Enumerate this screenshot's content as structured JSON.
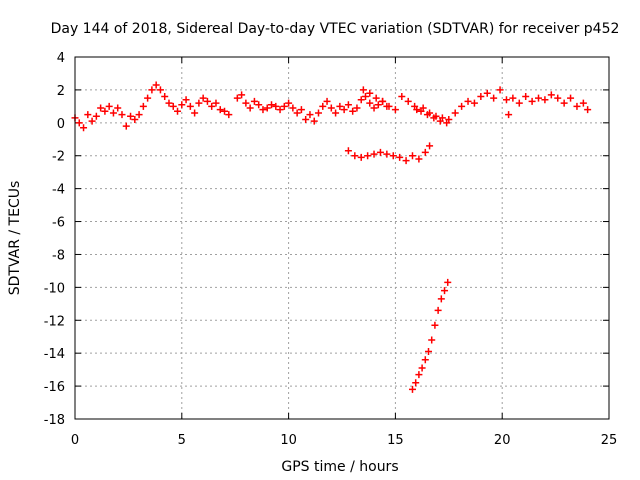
{
  "chart_data": {
    "type": "scatter",
    "title": "Day 144 of 2018, Sidereal Day-to-day VTEC variation (SDTVAR) for receiver p452",
    "xlabel": "GPS time / hours",
    "ylabel": "SDTVAR / TECUs",
    "xlim": [
      0,
      25
    ],
    "ylim": [
      -18,
      4
    ],
    "xticks": [
      0,
      5,
      10,
      15,
      20,
      25
    ],
    "yticks": [
      -18,
      -16,
      -14,
      -12,
      -10,
      -8,
      -6,
      -4,
      -2,
      0,
      2,
      4
    ],
    "grid": true,
    "marker": "+",
    "color": "#ff0000",
    "series": [
      {
        "x": [
          0.0,
          0.2,
          0.4,
          0.6,
          0.8,
          1.0,
          1.2,
          1.4,
          1.6,
          1.8,
          2.0,
          2.2,
          2.4,
          2.6,
          2.8,
          3.0,
          3.2,
          3.4,
          3.6,
          3.8,
          4.0,
          4.2,
          4.4,
          4.6,
          4.8,
          5.0,
          5.2,
          5.4,
          5.6,
          5.8,
          6.0,
          6.2,
          6.4,
          6.6,
          6.8,
          7.0,
          7.2
        ],
        "y": [
          0.3,
          0.0,
          -0.3,
          0.5,
          0.1,
          0.4,
          0.9,
          0.7,
          1.0,
          0.6,
          0.9,
          0.5,
          -0.2,
          0.4,
          0.2,
          0.5,
          1.0,
          1.5,
          2.0,
          2.3,
          2.0,
          1.6,
          1.2,
          1.0,
          0.7,
          1.1,
          1.4,
          1.0,
          0.6,
          1.2,
          1.5,
          1.3,
          1.0,
          1.2,
          0.8,
          0.7,
          0.5
        ]
      },
      {
        "x": [
          7.6,
          7.8,
          8.0,
          8.2,
          8.4,
          8.6,
          8.8,
          9.0,
          9.2,
          9.4,
          9.6,
          9.8,
          10.0,
          10.2,
          10.4,
          10.6,
          10.8,
          11.0,
          11.2,
          11.4,
          11.6,
          11.8,
          12.0,
          12.2,
          12.4,
          12.6,
          12.8,
          13.0,
          13.2,
          13.4,
          13.6,
          13.8,
          14.0,
          14.2,
          14.4,
          14.6
        ],
        "y": [
          1.5,
          1.7,
          1.2,
          0.9,
          1.3,
          1.1,
          0.8,
          0.9,
          1.1,
          1.0,
          0.8,
          1.0,
          1.2,
          0.9,
          0.6,
          0.8,
          0.2,
          0.5,
          0.1,
          0.6,
          1.0,
          1.3,
          0.9,
          0.6,
          1.0,
          0.8,
          1.1,
          0.7,
          0.9,
          1.4,
          1.6,
          1.2,
          0.9,
          1.1,
          1.3,
          1.0
        ]
      },
      {
        "x": [
          13.5,
          13.8,
          14.1,
          14.4,
          14.7,
          15.0,
          15.3,
          15.6,
          15.9,
          16.2,
          16.5,
          16.8,
          17.1,
          17.4
        ],
        "y": [
          2.0,
          1.8,
          1.5,
          1.3,
          1.0,
          0.8,
          1.6,
          1.3,
          1.0,
          0.7,
          0.5,
          0.3,
          0.1,
          0.0
        ]
      },
      {
        "x": [
          16.0,
          16.3,
          16.6,
          16.9,
          17.2,
          17.5,
          17.8,
          18.1,
          18.4,
          18.7,
          19.0,
          19.3,
          19.6,
          19.9,
          20.2,
          20.5,
          20.8,
          21.1,
          21.4,
          21.7,
          22.0,
          22.3,
          22.6,
          22.9,
          23.2,
          23.5,
          23.8,
          24.0
        ],
        "y": [
          0.8,
          0.9,
          0.6,
          0.4,
          0.3,
          0.2,
          0.6,
          1.0,
          1.3,
          1.2,
          1.6,
          1.8,
          1.5,
          2.0,
          1.4,
          1.5,
          1.2,
          1.6,
          1.3,
          1.5,
          1.4,
          1.7,
          1.5,
          1.2,
          1.5,
          1.0,
          1.2,
          0.8
        ]
      },
      {
        "x": [
          20.3
        ],
        "y": [
          0.5
        ]
      },
      {
        "x": [
          12.8,
          13.1,
          13.4,
          13.7,
          14.0,
          14.3,
          14.6,
          14.9,
          15.2,
          15.5,
          15.8,
          16.1,
          16.4,
          16.6
        ],
        "y": [
          -1.7,
          -2.0,
          -2.1,
          -2.0,
          -1.9,
          -1.8,
          -1.9,
          -2.0,
          -2.1,
          -2.3,
          -2.0,
          -2.2,
          -1.8,
          -1.4
        ]
      },
      {
        "x": [
          15.8,
          15.95,
          16.1,
          16.25,
          16.4,
          16.55,
          16.7,
          16.85,
          17.0,
          17.15,
          17.3,
          17.45
        ],
        "y": [
          -16.2,
          -15.8,
          -15.3,
          -14.9,
          -14.4,
          -13.9,
          -13.2,
          -12.3,
          -11.4,
          -10.7,
          -10.2,
          -9.7
        ]
      }
    ]
  }
}
